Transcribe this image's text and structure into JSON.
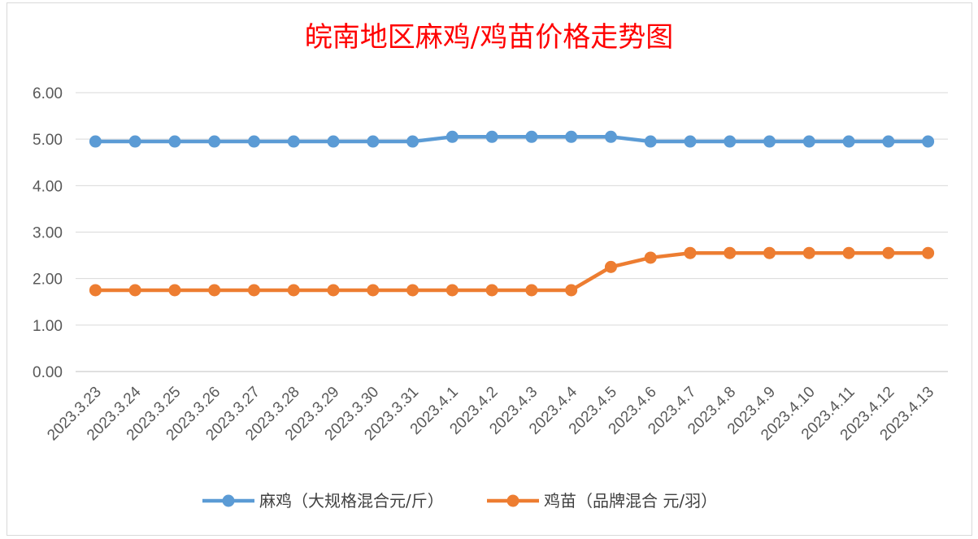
{
  "chart_data": {
    "type": "line",
    "title": "皖南地区麻鸡/鸡苗价格走势图",
    "categories": [
      "2023.3.23",
      "2023.3.24",
      "2023.3.25",
      "2023.3.26",
      "2023.3.27",
      "2023.3.28",
      "2023.3.29",
      "2023.3.30",
      "2023.3.31",
      "2023.4.1",
      "2023.4.2",
      "2023.4.3",
      "2023.4.4",
      "2023.4.5",
      "2023.4.6",
      "2023.4.7",
      "2023.4.8",
      "2023.4.9",
      "2023.4.10",
      "2023.4.11",
      "2023.4.12",
      "2023.4.13"
    ],
    "series": [
      {
        "name": "麻鸡（大规格混合元/斤）",
        "color": "#5b9bd5",
        "values": [
          4.95,
          4.95,
          4.95,
          4.95,
          4.95,
          4.95,
          4.95,
          4.95,
          4.95,
          5.05,
          5.05,
          5.05,
          5.05,
          5.05,
          4.95,
          4.95,
          4.95,
          4.95,
          4.95,
          4.95,
          4.95,
          4.95
        ]
      },
      {
        "name": "鸡苗（品牌混合 元/羽）",
        "color": "#ed7d31",
        "values": [
          1.75,
          1.75,
          1.75,
          1.75,
          1.75,
          1.75,
          1.75,
          1.75,
          1.75,
          1.75,
          1.75,
          1.75,
          1.75,
          2.25,
          2.45,
          2.55,
          2.55,
          2.55,
          2.55,
          2.55,
          2.55,
          2.55
        ]
      }
    ],
    "ylim": [
      0,
      6
    ],
    "yticks": [
      "0.00",
      "1.00",
      "2.00",
      "3.00",
      "4.00",
      "5.00",
      "6.00"
    ],
    "grid": true,
    "legend_position": "bottom"
  }
}
